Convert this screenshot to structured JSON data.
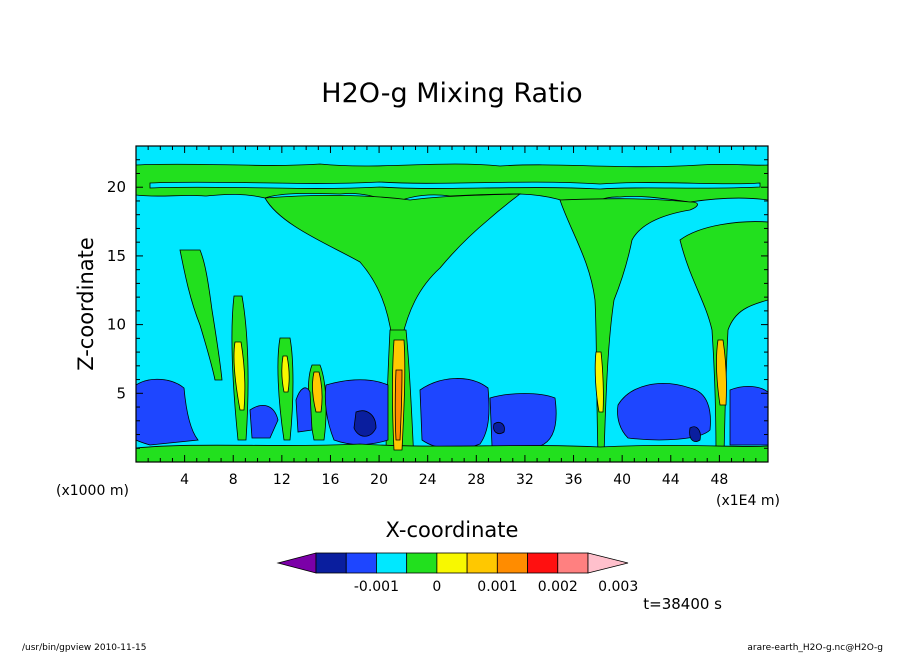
{
  "chart_data": {
    "type": "heatmap",
    "title": "H2O-g Mixing Ratio",
    "xlabel": "X-coordinate",
    "ylabel": "Z-coordinate",
    "x_unit_left": "(x1000 m)",
    "x_unit_right": "(x1E4 m)",
    "xlim": [
      0,
      52
    ],
    "ylim": [
      0,
      23
    ],
    "x_ticks": [
      4,
      8,
      12,
      16,
      20,
      24,
      28,
      32,
      36,
      40,
      44,
      48
    ],
    "y_ticks": [
      5,
      10,
      15,
      20
    ],
    "colorbar": {
      "levels": [
        -0.0015,
        -0.001,
        -0.0005,
        0,
        0.0005,
        0.001,
        0.0015,
        0.002,
        0.0025,
        0.003
      ],
      "tick_labels": [
        "-0.001",
        "0",
        "0.001",
        "0.002",
        "0.003"
      ],
      "tick_values": [
        -0.001,
        0,
        0.001,
        0.002,
        0.003
      ],
      "colors": [
        "#7b00a8",
        "#0a1e9e",
        "#1e46ff",
        "#00e8ff",
        "#22e01e",
        "#f8f800",
        "#ffc800",
        "#ff8c00",
        "#ff1010",
        "#ff8080",
        "#ffc0cc"
      ]
    },
    "time_label": "t=38400 s"
  },
  "footer": {
    "left": "/usr/bin/gpview   2010-11-15",
    "right": "arare-earth_H2O-g.nc@H2O-g"
  }
}
